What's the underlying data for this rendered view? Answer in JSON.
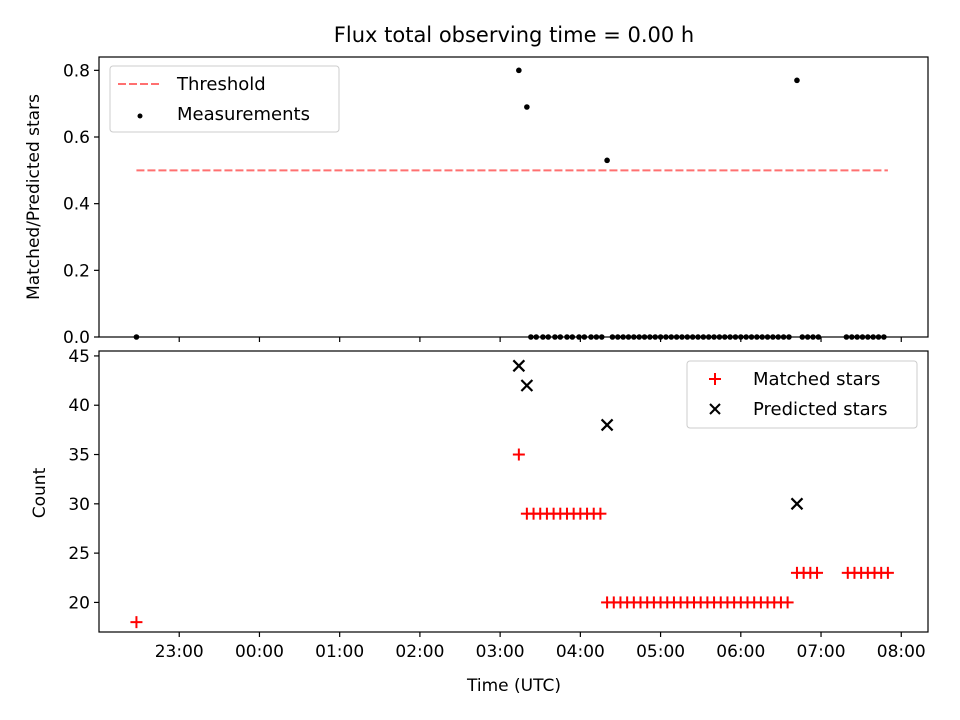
{
  "chart_data": [
    {
      "type": "scatter",
      "title": "Flux total observing time = 0.00 h",
      "xlabel": "",
      "ylabel": "Matched/Predicted stars",
      "xlim": [
        "22:00",
        "08:20"
      ],
      "ylim": [
        0,
        0.84
      ],
      "yticks": [
        0.0,
        0.2,
        0.4,
        0.6,
        0.8
      ],
      "ytick_labels": [
        "0.0",
        "0.2",
        "0.4",
        "0.6",
        "0.8"
      ],
      "xtick_labels": [
        "23:00",
        "00:00",
        "01:00",
        "02:00",
        "03:00",
        "04:00",
        "05:00",
        "06:00",
        "07:00",
        "08:00"
      ],
      "grid": false,
      "legend": "upper left",
      "series": [
        {
          "name": "Threshold",
          "style": "dashed-line",
          "color": "#ff7070",
          "x": [
            "22:28",
            "07:50"
          ],
          "y": [
            0.5,
            0.5
          ]
        },
        {
          "name": "Measurements",
          "style": "dot",
          "color": "#000000",
          "x": [
            "22:28",
            "03:14",
            "03:20",
            "04:20",
            "06:42",
            "03:23",
            "03:27",
            "03:32",
            "03:36",
            "03:41",
            "03:45",
            "03:50",
            "03:54",
            "03:59",
            "04:03",
            "04:08",
            "04:12",
            "04:16",
            "04:24",
            "04:28",
            "04:32",
            "04:36",
            "04:40",
            "04:44",
            "04:48",
            "04:52",
            "04:56",
            "05:00",
            "05:04",
            "05:08",
            "05:12",
            "05:16",
            "05:20",
            "05:24",
            "05:28",
            "05:32",
            "05:36",
            "05:40",
            "05:44",
            "05:48",
            "05:52",
            "05:56",
            "06:00",
            "06:04",
            "06:08",
            "06:12",
            "06:16",
            "06:20",
            "06:24",
            "06:28",
            "06:32",
            "06:36",
            "06:46",
            "06:50",
            "06:54",
            "06:58",
            "07:19",
            "07:23",
            "07:27",
            "07:31",
            "07:35",
            "07:39",
            "07:43",
            "07:47"
          ],
          "y": [
            0.0,
            0.8,
            0.69,
            0.53,
            0.77,
            0,
            0,
            0,
            0,
            0,
            0,
            0,
            0,
            0,
            0,
            0,
            0,
            0,
            0,
            0,
            0,
            0,
            0,
            0,
            0,
            0,
            0,
            0,
            0,
            0,
            0,
            0,
            0,
            0,
            0,
            0,
            0,
            0,
            0,
            0,
            0,
            0,
            0,
            0,
            0,
            0,
            0,
            0,
            0,
            0,
            0,
            0,
            0,
            0,
            0,
            0,
            0,
            0,
            0,
            0,
            0,
            0,
            0,
            0
          ]
        }
      ]
    },
    {
      "type": "scatter",
      "title": "",
      "xlabel": "Time (UTC)",
      "ylabel": "Count",
      "xlim": [
        "22:00",
        "08:20"
      ],
      "ylim": [
        17,
        45.5
      ],
      "yticks": [
        20,
        25,
        30,
        35,
        40,
        45
      ],
      "ytick_labels": [
        "20",
        "25",
        "30",
        "35",
        "40",
        "45"
      ],
      "xtick_labels": [
        "23:00",
        "00:00",
        "01:00",
        "02:00",
        "03:00",
        "04:00",
        "05:00",
        "06:00",
        "07:00",
        "08:00"
      ],
      "grid": false,
      "legend": "upper right",
      "series": [
        {
          "name": "Matched stars",
          "style": "plus",
          "color": "#ff0000",
          "x": [
            "22:28",
            "03:14",
            "03:20",
            "03:25",
            "03:30",
            "03:35",
            "03:40",
            "03:45",
            "03:50",
            "03:55",
            "04:00",
            "04:05",
            "04:10",
            "04:15",
            "04:20",
            "04:25",
            "04:30",
            "04:35",
            "04:40",
            "04:45",
            "04:50",
            "04:55",
            "05:00",
            "05:05",
            "05:10",
            "05:15",
            "05:20",
            "05:25",
            "05:30",
            "05:35",
            "05:40",
            "05:45",
            "05:50",
            "05:55",
            "06:00",
            "06:05",
            "06:10",
            "06:15",
            "06:20",
            "06:25",
            "06:30",
            "06:35",
            "06:42",
            "06:47",
            "06:52",
            "06:57",
            "07:20",
            "07:25",
            "07:30",
            "07:35",
            "07:40",
            "07:45",
            "07:50"
          ],
          "y": [
            18,
            35,
            29,
            29,
            29,
            29,
            29,
            29,
            29,
            29,
            29,
            29,
            29,
            29,
            20,
            20,
            20,
            20,
            20,
            20,
            20,
            20,
            20,
            20,
            20,
            20,
            20,
            20,
            20,
            20,
            20,
            20,
            20,
            20,
            20,
            20,
            20,
            20,
            20,
            20,
            20,
            20,
            23,
            23,
            23,
            23,
            23,
            23,
            23,
            23,
            23,
            23,
            23
          ]
        },
        {
          "name": "Predicted stars",
          "style": "x",
          "color": "#000000",
          "x": [
            "03:14",
            "03:20",
            "04:20",
            "06:42"
          ],
          "y": [
            44,
            42,
            38,
            30
          ]
        }
      ]
    }
  ]
}
